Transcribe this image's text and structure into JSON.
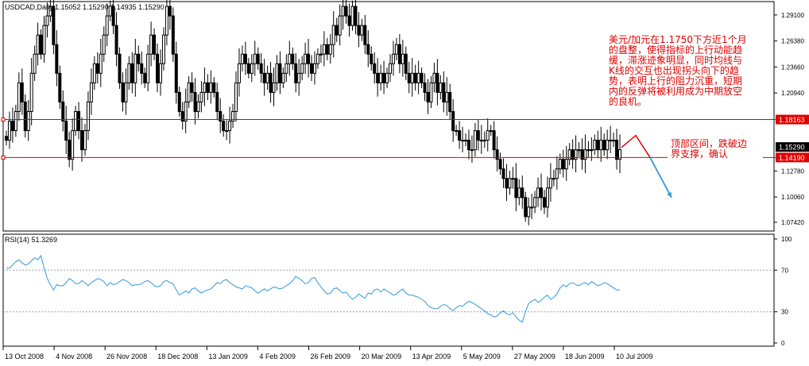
{
  "header": {
    "symbol_line": "USDCAD,Daily  1.15052 1.15290 1.14935 1.15290"
  },
  "rsi_header": "RSI(14) 51.3269",
  "annotations": {
    "main_note": "美元/加元在1.1750下方近1个月\n的盘整，使得指标的上行动能趋\n缓，滞涨迹象明显，同时均线与\nK线的交互也出现拐头向下的趋\n势，表明上行的阻力沉重，短期\n内的反弹将被利用成为中期放空\n的良机。",
    "zone_note": "顶部区间，跌破边\n界支撑，确认"
  },
  "colors": {
    "resistance_line": "#e00000",
    "forecast_arrow": "#3399dd",
    "rsi_line": "#3399dd",
    "candle": "#000000",
    "annotation_text": "#e00000"
  },
  "chart_data": [
    {
      "type": "candlestick",
      "symbol": "USDCAD",
      "timeframe": "Daily",
      "ohlc_latest": {
        "open": 1.15052,
        "high": 1.1529,
        "low": 1.14935,
        "close": 1.1529
      },
      "y_ticks": [
        "1.29100",
        "1.26380",
        "1.23660",
        "1.20940",
        "1.12780",
        "1.10060",
        "1.07420"
      ],
      "ylim": [
        1.065,
        1.305
      ],
      "x_ticks": [
        "13 Oct 2008",
        "4 Nov 2008",
        "26 Nov 2008",
        "18 Dec 2008",
        "13 Jan 2009",
        "4 Feb 2009",
        "26 Feb 2009",
        "20 Mar 2009",
        "13 Apr 2009",
        "5 May 2009",
        "27 May 2009",
        "18 Jun 2009",
        "10 Jul 2009"
      ],
      "closes": [
        1.16,
        1.18,
        1.17,
        1.19,
        1.22,
        1.2,
        1.17,
        1.19,
        1.23,
        1.25,
        1.27,
        1.25,
        1.28,
        1.29,
        1.3,
        1.26,
        1.23,
        1.2,
        1.18,
        1.16,
        1.14,
        1.17,
        1.19,
        1.17,
        1.15,
        1.17,
        1.2,
        1.22,
        1.24,
        1.23,
        1.25,
        1.27,
        1.29,
        1.3,
        1.28,
        1.25,
        1.22,
        1.2,
        1.22,
        1.24,
        1.22,
        1.25,
        1.24,
        1.23,
        1.22,
        1.25,
        1.27,
        1.25,
        1.22,
        1.24,
        1.27,
        1.3,
        1.29,
        1.25,
        1.21,
        1.19,
        1.18,
        1.2,
        1.22,
        1.21,
        1.19,
        1.2,
        1.21,
        1.22,
        1.21,
        1.22,
        1.21,
        1.19,
        1.18,
        1.17,
        1.17,
        1.18,
        1.19,
        1.22,
        1.24,
        1.25,
        1.24,
        1.23,
        1.24,
        1.25,
        1.24,
        1.23,
        1.22,
        1.23,
        1.21,
        1.22,
        1.24,
        1.22,
        1.23,
        1.24,
        1.25,
        1.24,
        1.22,
        1.23,
        1.24,
        1.25,
        1.24,
        1.23,
        1.24,
        1.25,
        1.25,
        1.26,
        1.25,
        1.26,
        1.28,
        1.27,
        1.29,
        1.3,
        1.29,
        1.28,
        1.3,
        1.28,
        1.27,
        1.28,
        1.26,
        1.25,
        1.24,
        1.23,
        1.22,
        1.23,
        1.22,
        1.23,
        1.24,
        1.25,
        1.26,
        1.24,
        1.25,
        1.23,
        1.22,
        1.23,
        1.22,
        1.23,
        1.22,
        1.21,
        1.2,
        1.22,
        1.23,
        1.21,
        1.22,
        1.2,
        1.21,
        1.19,
        1.17,
        1.17,
        1.16,
        1.16,
        1.16,
        1.15,
        1.15,
        1.17,
        1.16,
        1.16,
        1.16,
        1.17,
        1.17,
        1.15,
        1.14,
        1.13,
        1.12,
        1.11,
        1.12,
        1.12,
        1.1,
        1.11,
        1.1,
        1.08,
        1.09,
        1.09,
        1.1,
        1.11,
        1.1,
        1.09,
        1.11,
        1.12,
        1.12,
        1.13,
        1.14,
        1.13,
        1.14,
        1.15,
        1.14,
        1.15,
        1.15,
        1.14,
        1.15,
        1.15,
        1.15,
        1.16,
        1.15,
        1.16,
        1.15,
        1.16,
        1.16,
        1.16,
        1.14,
        1.15
      ],
      "horizontal_lines": [
        {
          "label": "1.18163",
          "value": 1.18163
        },
        {
          "label": "1.14190",
          "value": 1.1419
        }
      ],
      "current_price_label": "1.15290",
      "current_price": 1.1529,
      "forecast_arrow": {
        "direction": "down",
        "from_value": 1.165,
        "to_value": 1.1
      }
    },
    {
      "type": "line",
      "name": "RSI(14)",
      "value_latest": 51.3269,
      "y_ticks": [
        "100",
        "70",
        "30",
        "0"
      ],
      "ylim": [
        0,
        100
      ],
      "levels": [
        70,
        30
      ],
      "values": [
        72,
        72,
        75,
        78,
        80,
        77,
        75,
        76,
        79,
        82,
        80,
        84,
        72,
        62,
        56,
        51,
        56,
        55,
        55,
        58,
        62,
        60,
        57,
        57,
        60,
        58,
        55,
        58,
        60,
        62,
        61,
        59,
        55,
        58,
        56,
        57,
        59,
        61,
        60,
        58,
        55,
        56,
        56,
        57,
        59,
        60,
        58,
        55,
        54,
        55,
        59,
        60,
        58,
        57,
        51,
        46,
        48,
        50,
        48,
        52,
        53,
        50,
        48,
        50,
        51,
        52,
        55,
        58,
        57,
        60,
        61,
        58,
        56,
        54,
        53,
        52,
        55,
        54,
        53,
        50,
        48,
        50,
        52,
        50,
        52,
        54,
        53,
        52,
        53,
        55,
        57,
        60,
        64,
        62,
        60,
        57,
        58,
        62,
        63,
        58,
        54,
        50,
        47,
        48,
        52,
        53,
        50,
        48,
        49,
        45,
        42,
        44,
        47,
        45,
        43,
        48,
        47,
        51,
        52,
        49,
        52,
        50,
        48,
        46,
        47,
        50,
        52,
        48,
        46,
        46,
        45,
        44,
        42,
        40,
        36,
        34,
        33,
        33,
        35,
        37,
        36,
        33,
        31,
        34,
        36,
        35,
        38,
        40,
        39,
        37,
        35,
        33,
        31,
        28,
        27,
        25,
        26,
        29,
        31,
        28,
        27,
        29,
        25,
        22,
        20,
        30,
        38,
        40,
        42,
        39,
        41,
        44,
        46,
        42,
        44,
        47,
        53,
        56,
        54,
        57,
        58,
        56,
        55,
        57,
        58,
        56,
        59,
        57,
        55,
        56,
        58,
        57,
        55,
        53,
        51,
        51
      ]
    }
  ]
}
